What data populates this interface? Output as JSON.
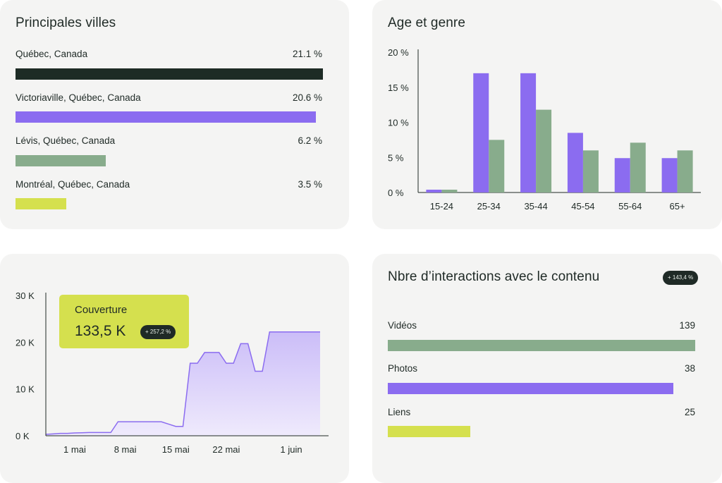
{
  "cities": {
    "title": "Principales villes",
    "items": [
      {
        "label": "Québec, Canada",
        "value_text": "21.1 %",
        "value": 21.1,
        "color": "#1d2b25"
      },
      {
        "label": "Victoriaville, Québec, Canada",
        "value_text": "20.6 %",
        "value": 20.6,
        "color": "#8b6cf0"
      },
      {
        "label": "Lévis, Québec, Canada",
        "value_text": "6.2 %",
        "value": 6.2,
        "color": "#88ac8c"
      },
      {
        "label": "Montréal, Québec, Canada",
        "value_text": "3.5 %",
        "value": 3.5,
        "color": "#d5e04e"
      }
    ]
  },
  "interactions": {
    "title": "Nbre d’interactions avec le contenu",
    "badge": "+ 143,4 %",
    "items": [
      {
        "label": "Vidéos",
        "value_text": "139",
        "value": 139,
        "color": "#88ac8c"
      },
      {
        "label": "Photos",
        "value_text": "38",
        "value": 38,
        "color": "#8b6cf0"
      },
      {
        "label": "Liens",
        "value_text": "25",
        "value": 25,
        "color": "#d5e04e"
      }
    ]
  },
  "reach": {
    "label": "Couverture",
    "value": "133,5 K",
    "badge": "+ 257,2 %"
  },
  "chart_data": [
    {
      "type": "bar",
      "title": "Age et genre",
      "categories": [
        "15-24",
        "25-34",
        "35-44",
        "45-54",
        "55-64",
        "65+"
      ],
      "series": [
        {
          "values": [
            0.4,
            17,
            17,
            8.5,
            4.9,
            4.9
          ],
          "color": "#8b6cf0"
        },
        {
          "values": [
            0.4,
            7.5,
            11.8,
            6,
            7.1,
            6
          ],
          "color": "#88ac8c"
        }
      ],
      "yticks": [
        "0 %",
        "5 %",
        "10 %",
        "15 %",
        "20 %"
      ],
      "ylim": [
        0,
        20
      ],
      "grid": false
    },
    {
      "type": "area",
      "title": "",
      "x": [
        0,
        1,
        2,
        3,
        4,
        5,
        6,
        7,
        8,
        9,
        10,
        11,
        12,
        13,
        14,
        15,
        16,
        17,
        18,
        19,
        20,
        21,
        22,
        23,
        24,
        25,
        26,
        27,
        28,
        29,
        30,
        31,
        32,
        33,
        34,
        35,
        36,
        37,
        38
      ],
      "y": [
        300,
        400,
        500,
        500,
        600,
        650,
        700,
        700,
        700,
        700,
        3000,
        3000,
        3000,
        3000,
        3000,
        3000,
        3000,
        2500,
        2000,
        2000,
        15500,
        15500,
        17800,
        17800,
        17800,
        15500,
        15500,
        19700,
        19700,
        13800,
        13800,
        22200,
        22200,
        22200,
        22200,
        22200,
        22200,
        22200,
        22200
      ],
      "xticks": [
        "1 mai",
        "8 mai",
        "15 mai",
        "22 mai",
        "1 juin"
      ],
      "yticks": [
        "0 K",
        "10 K",
        "20 K",
        "30 K"
      ],
      "ylim": [
        0,
        30000
      ],
      "color": "#8b6cf0",
      "fill": "#ddd3fb",
      "grid": false
    }
  ]
}
